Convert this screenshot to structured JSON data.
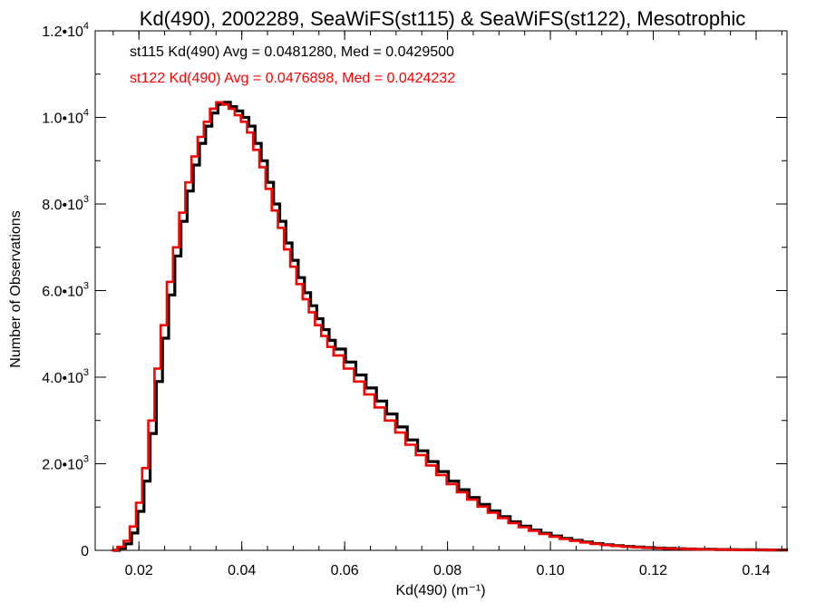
{
  "chart_data": {
    "type": "histogram-step",
    "title": "Kd(490), 2002289, SeaWiFS(st115) & SeaWiFS(st122), Mesotrophic",
    "xlabel": "Kd(490) (m⁻¹)",
    "ylabel": "Number of Observations",
    "xlim": [
      0.0115,
      0.146
    ],
    "ylim": [
      0,
      12000
    ],
    "x_ticks": [
      0.02,
      0.04,
      0.06,
      0.08,
      0.1,
      0.12,
      0.14
    ],
    "x_tick_labels": [
      "0.02",
      "0.04",
      "0.06",
      "0.08",
      "0.10",
      "0.12",
      "0.14"
    ],
    "y_ticks": [
      0,
      2000,
      4000,
      6000,
      8000,
      10000,
      12000
    ],
    "y_tick_labels": [
      {
        "mantissa": "0",
        "exponent": ""
      },
      {
        "mantissa": "2.0•10",
        "exponent": "3"
      },
      {
        "mantissa": "4.0•10",
        "exponent": "3"
      },
      {
        "mantissa": "6.0•10",
        "exponent": "3"
      },
      {
        "mantissa": "8.0•10",
        "exponent": "3"
      },
      {
        "mantissa": "1.0•10",
        "exponent": "4"
      },
      {
        "mantissa": "1.2•10",
        "exponent": "4"
      }
    ],
    "grid": false,
    "legend_position": "top-left",
    "series": [
      {
        "label": "st115 Kd(490) Avg = 0.0481280, Med = 0.0429500",
        "color": "#000000",
        "stroke_width": 3.2,
        "offset": 1.0,
        "x": [
          0.0148,
          0.016,
          0.0172,
          0.0184,
          0.0196,
          0.0208,
          0.022,
          0.0232,
          0.0244,
          0.0256,
          0.0268,
          0.028,
          0.0292,
          0.0304,
          0.0316,
          0.0328,
          0.034,
          0.0352,
          0.0364,
          0.0376,
          0.0388,
          0.04,
          0.0412,
          0.0424,
          0.0436,
          0.0448,
          0.046,
          0.0472,
          0.0484,
          0.0496,
          0.0508,
          0.052,
          0.0532,
          0.0544,
          0.0556,
          0.0568,
          0.058,
          0.06,
          0.062,
          0.064,
          0.066,
          0.068,
          0.07,
          0.072,
          0.074,
          0.076,
          0.078,
          0.08,
          0.082,
          0.084,
          0.086,
          0.088,
          0.09,
          0.092,
          0.094,
          0.096,
          0.098,
          0.1,
          0.102,
          0.104,
          0.106,
          0.108,
          0.11,
          0.112,
          0.114,
          0.116,
          0.118,
          0.12,
          0.122,
          0.124,
          0.126,
          0.128,
          0.13,
          0.132,
          0.134,
          0.136,
          0.138,
          0.14,
          0.142,
          0.144,
          0.146
        ],
        "values": [
          0,
          50,
          150,
          400,
          900,
          1600,
          2700,
          3900,
          4900,
          5900,
          6800,
          7600,
          8300,
          8900,
          9400,
          9800,
          10100,
          10300,
          10350,
          10250,
          10150,
          10000,
          9800,
          9400,
          9000,
          8500,
          8000,
          7600,
          7100,
          6700,
          6300,
          5950,
          5650,
          5350,
          5100,
          4850,
          4650,
          4350,
          4050,
          3750,
          3450,
          3150,
          2850,
          2550,
          2300,
          2050,
          1820,
          1600,
          1400,
          1220,
          1060,
          910,
          780,
          660,
          560,
          470,
          395,
          330,
          275,
          230,
          190,
          158,
          130,
          108,
          90,
          75,
          62,
          52,
          44,
          37,
          31,
          26,
          22,
          19,
          16,
          14,
          12,
          10,
          9,
          8,
          7
        ]
      },
      {
        "label": "st122 Kd(490) Avg = 0.0476898, Med = 0.0424232",
        "color": "#ff0000",
        "stroke_width": 2.6,
        "offset": -1.0,
        "x": [
          0.0148,
          0.016,
          0.0172,
          0.0184,
          0.0196,
          0.0208,
          0.022,
          0.0232,
          0.0244,
          0.0256,
          0.0268,
          0.028,
          0.0292,
          0.0304,
          0.0316,
          0.0328,
          0.034,
          0.0352,
          0.0364,
          0.0376,
          0.0388,
          0.04,
          0.0412,
          0.0424,
          0.0436,
          0.0448,
          0.046,
          0.0472,
          0.0484,
          0.0496,
          0.0508,
          0.052,
          0.0532,
          0.0544,
          0.0556,
          0.0568,
          0.058,
          0.06,
          0.062,
          0.064,
          0.066,
          0.068,
          0.07,
          0.072,
          0.074,
          0.076,
          0.078,
          0.08,
          0.082,
          0.084,
          0.086,
          0.088,
          0.09,
          0.092,
          0.094,
          0.096,
          0.098,
          0.1,
          0.102,
          0.104,
          0.106,
          0.108,
          0.11,
          0.112,
          0.114,
          0.116,
          0.118,
          0.12,
          0.122,
          0.124,
          0.126,
          0.128,
          0.13,
          0.132,
          0.134,
          0.136,
          0.138,
          0.14,
          0.142,
          0.144,
          0.146
        ],
        "values": [
          0,
          80,
          220,
          550,
          1100,
          1900,
          3000,
          4200,
          5200,
          6200,
          7000,
          7800,
          8500,
          9100,
          9550,
          9900,
          10200,
          10350,
          10300,
          10200,
          10050,
          9900,
          9650,
          9250,
          8850,
          8350,
          7850,
          7450,
          6950,
          6550,
          6150,
          5800,
          5500,
          5200,
          4950,
          4700,
          4500,
          4200,
          3900,
          3600,
          3300,
          3000,
          2720,
          2440,
          2200,
          1960,
          1740,
          1530,
          1340,
          1170,
          1010,
          870,
          745,
          630,
          535,
          450,
          378,
          315,
          262,
          220,
          182,
          150,
          124,
          103,
          86,
          71,
          59,
          49,
          41,
          35,
          29,
          25,
          21,
          18,
          15,
          13,
          11,
          10,
          8,
          7,
          6
        ]
      }
    ]
  }
}
